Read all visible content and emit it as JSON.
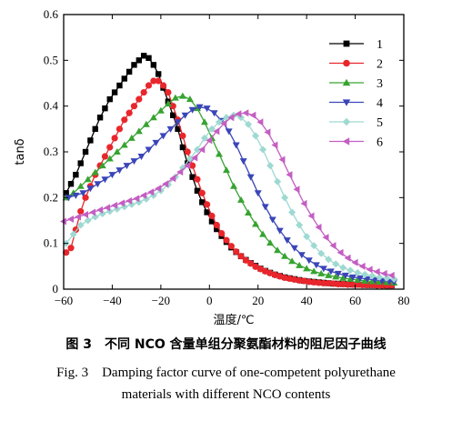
{
  "caption_cn": "图 3　不同 NCO 含量单组分聚氨酯材料的阻尼因子曲线",
  "caption_en_line1": "Fig. 3　Damping factor curve of one-competent polyurethane",
  "caption_en_line2": "materials with different NCO contents",
  "chart_data": {
    "type": "line",
    "xlabel": "温度/℃",
    "ylabel": "tanδ",
    "xlim": [
      -60,
      80
    ],
    "ylim": [
      0,
      0.6
    ],
    "xticks": [
      -60,
      -40,
      -20,
      0,
      20,
      40,
      60,
      80
    ],
    "yticks": [
      0,
      0.1,
      0.2,
      0.3,
      0.4,
      0.5,
      0.6
    ],
    "legend_position": "top-right",
    "series": [
      {
        "name": "1",
        "color": "#000000",
        "marker": "square",
        "x": [
          -59,
          -57,
          -55,
          -53,
          -51,
          -49,
          -47,
          -45,
          -43,
          -41,
          -39,
          -37,
          -35,
          -33,
          -31,
          -29,
          -27,
          -25,
          -23,
          -21,
          -19,
          -17,
          -15,
          -13,
          -11,
          -9,
          -7,
          -5,
          -3,
          -1,
          1,
          3,
          5,
          7,
          9,
          11,
          13,
          15,
          17,
          19,
          21,
          23,
          25,
          27,
          29,
          31,
          33,
          35,
          37,
          39,
          41,
          43,
          45,
          47,
          49,
          51,
          53,
          55,
          57,
          59,
          61,
          63,
          65,
          67,
          69,
          71,
          73,
          75
        ],
        "y": [
          0.21,
          0.23,
          0.25,
          0.275,
          0.3,
          0.325,
          0.35,
          0.375,
          0.395,
          0.415,
          0.43,
          0.445,
          0.46,
          0.475,
          0.49,
          0.5,
          0.51,
          0.505,
          0.49,
          0.47,
          0.44,
          0.41,
          0.38,
          0.35,
          0.31,
          0.275,
          0.245,
          0.215,
          0.19,
          0.168,
          0.148,
          0.131,
          0.116,
          0.103,
          0.091,
          0.081,
          0.072,
          0.064,
          0.057,
          0.051,
          0.045,
          0.04,
          0.036,
          0.032,
          0.029,
          0.026,
          0.024,
          0.022,
          0.02,
          0.018,
          0.017,
          0.016,
          0.015,
          0.014,
          0.013,
          0.012,
          0.012,
          0.011,
          0.011,
          0.01,
          0.01,
          0.01,
          0.009,
          0.009,
          0.009,
          0.009,
          0.008,
          0.008
        ]
      },
      {
        "name": "2",
        "color": "#e8262c",
        "marker": "circle",
        "x": [
          -59,
          -57,
          -55,
          -53,
          -51,
          -49,
          -47,
          -45,
          -43,
          -41,
          -39,
          -37,
          -35,
          -33,
          -31,
          -29,
          -27,
          -25,
          -23,
          -21,
          -19,
          -17,
          -15,
          -13,
          -11,
          -9,
          -7,
          -5,
          -3,
          -1,
          1,
          3,
          5,
          7,
          9,
          11,
          13,
          15,
          17,
          19,
          21,
          23,
          25,
          27,
          29,
          31,
          33,
          35,
          37,
          39,
          41,
          43,
          45,
          47,
          49,
          51,
          53,
          55,
          57,
          59,
          61,
          63,
          65,
          67,
          69,
          71,
          73,
          75
        ],
        "y": [
          0.08,
          0.09,
          0.13,
          0.17,
          0.2,
          0.225,
          0.25,
          0.27,
          0.29,
          0.31,
          0.33,
          0.35,
          0.37,
          0.385,
          0.4,
          0.415,
          0.43,
          0.445,
          0.455,
          0.455,
          0.445,
          0.43,
          0.4,
          0.37,
          0.335,
          0.3,
          0.27,
          0.24,
          0.21,
          0.185,
          0.16,
          0.14,
          0.122,
          0.107,
          0.094,
          0.082,
          0.072,
          0.063,
          0.056,
          0.049,
          0.044,
          0.039,
          0.035,
          0.031,
          0.028,
          0.025,
          0.023,
          0.021,
          0.019,
          0.018,
          0.016,
          0.015,
          0.014,
          0.013,
          0.013,
          0.012,
          0.011,
          0.011,
          0.01,
          0.01,
          0.01,
          0.009,
          0.009,
          0.009,
          0.008,
          0.008,
          0.008,
          0.008
        ]
      },
      {
        "name": "3",
        "color": "#37a331",
        "marker": "triangle-up",
        "x": [
          -59,
          -56,
          -53,
          -50,
          -47,
          -44,
          -41,
          -38,
          -35,
          -32,
          -29,
          -26,
          -23,
          -20,
          -17,
          -14,
          -11,
          -8,
          -5,
          -2,
          1,
          4,
          7,
          10,
          13,
          16,
          19,
          22,
          25,
          28,
          31,
          34,
          37,
          40,
          43,
          46,
          49,
          52,
          55,
          58,
          61,
          64,
          67,
          70,
          73,
          76
        ],
        "y": [
          0.2,
          0.21,
          0.225,
          0.24,
          0.255,
          0.27,
          0.285,
          0.3,
          0.315,
          0.33,
          0.345,
          0.36,
          0.375,
          0.39,
          0.405,
          0.418,
          0.422,
          0.415,
          0.395,
          0.365,
          0.33,
          0.295,
          0.26,
          0.225,
          0.195,
          0.167,
          0.142,
          0.12,
          0.101,
          0.085,
          0.072,
          0.061,
          0.052,
          0.045,
          0.039,
          0.034,
          0.03,
          0.027,
          0.024,
          0.022,
          0.02,
          0.018,
          0.017,
          0.016,
          0.015,
          0.014
        ]
      },
      {
        "name": "4",
        "color": "#3a45b8",
        "marker": "triangle-down",
        "x": [
          -58,
          -55,
          -52,
          -49,
          -46,
          -43,
          -40,
          -37,
          -34,
          -31,
          -28,
          -25,
          -22,
          -19,
          -16,
          -13,
          -10,
          -7,
          -4,
          -1,
          2,
          5,
          8,
          11,
          14,
          17,
          20,
          23,
          26,
          29,
          32,
          35,
          38,
          41,
          44,
          47,
          50,
          53,
          56,
          59,
          62,
          65,
          68,
          71,
          74,
          76
        ],
        "y": [
          0.2,
          0.205,
          0.21,
          0.22,
          0.23,
          0.24,
          0.25,
          0.26,
          0.27,
          0.28,
          0.29,
          0.305,
          0.32,
          0.335,
          0.35,
          0.365,
          0.38,
          0.392,
          0.398,
          0.395,
          0.385,
          0.368,
          0.345,
          0.315,
          0.28,
          0.245,
          0.21,
          0.18,
          0.152,
          0.128,
          0.107,
          0.09,
          0.075,
          0.063,
          0.053,
          0.045,
          0.039,
          0.034,
          0.03,
          0.026,
          0.024,
          0.022,
          0.02,
          0.018,
          0.017,
          0.016
        ]
      },
      {
        "name": "5",
        "color": "#9ed9d2",
        "marker": "diamond",
        "x": [
          -59,
          -56,
          -53,
          -50,
          -47,
          -44,
          -41,
          -38,
          -35,
          -32,
          -29,
          -26,
          -23,
          -20,
          -17,
          -14,
          -11,
          -8,
          -5,
          -2,
          1,
          4,
          7,
          10,
          13,
          16,
          19,
          22,
          25,
          28,
          31,
          34,
          37,
          40,
          43,
          46,
          49,
          52,
          55,
          58,
          61,
          64,
          67,
          70,
          73,
          76
        ],
        "y": [
          0.1,
          0.12,
          0.14,
          0.15,
          0.158,
          0.165,
          0.17,
          0.175,
          0.18,
          0.185,
          0.19,
          0.197,
          0.205,
          0.215,
          0.228,
          0.245,
          0.265,
          0.285,
          0.305,
          0.33,
          0.35,
          0.365,
          0.375,
          0.38,
          0.375,
          0.36,
          0.335,
          0.305,
          0.27,
          0.235,
          0.2,
          0.168,
          0.14,
          0.115,
          0.095,
          0.078,
          0.065,
          0.055,
          0.047,
          0.041,
          0.036,
          0.032,
          0.029,
          0.026,
          0.024,
          0.022
        ]
      },
      {
        "name": "6",
        "color": "#c45ec2",
        "marker": "triangle-left",
        "x": [
          -60,
          -57,
          -54,
          -51,
          -48,
          -45,
          -42,
          -39,
          -36,
          -33,
          -30,
          -27,
          -24,
          -21,
          -18,
          -15,
          -12,
          -9,
          -6,
          -3,
          0,
          3,
          6,
          9,
          12,
          15,
          18,
          21,
          24,
          27,
          30,
          33,
          36,
          39,
          42,
          45,
          48,
          51,
          54,
          57,
          60,
          63,
          66,
          69,
          72,
          75
        ],
        "y": [
          0.148,
          0.153,
          0.158,
          0.163,
          0.168,
          0.173,
          0.178,
          0.183,
          0.188,
          0.193,
          0.198,
          0.205,
          0.212,
          0.22,
          0.23,
          0.242,
          0.256,
          0.27,
          0.287,
          0.305,
          0.325,
          0.345,
          0.362,
          0.375,
          0.383,
          0.385,
          0.38,
          0.365,
          0.343,
          0.315,
          0.283,
          0.25,
          0.218,
          0.187,
          0.16,
          0.135,
          0.113,
          0.095,
          0.08,
          0.068,
          0.058,
          0.05,
          0.043,
          0.038,
          0.034,
          0.03
        ]
      }
    ]
  }
}
